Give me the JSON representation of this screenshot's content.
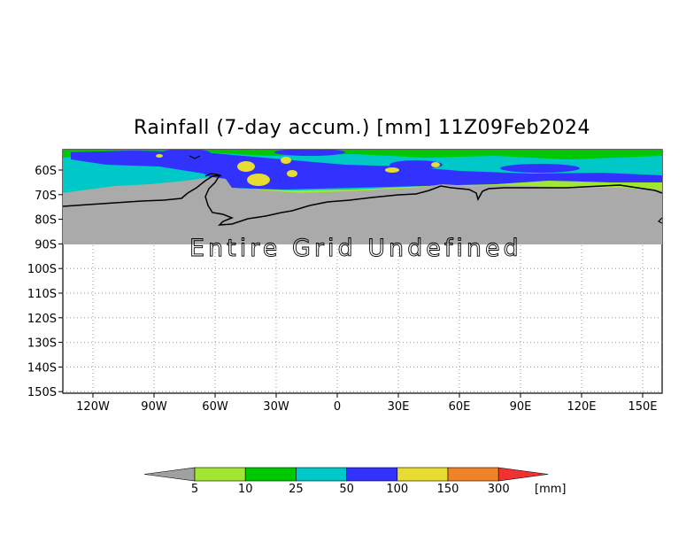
{
  "title": "Rainfall (7-day accum.) [mm] 11Z09Feb2024",
  "undefined_message": "Entire Grid Undefined",
  "map": {
    "projection": "latitude-longitude",
    "lon_range": [
      -138,
      157
    ],
    "lat_range": [
      -150,
      -50
    ],
    "y_ticks": [
      "60S",
      "70S",
      "80S",
      "90S",
      "100S",
      "110S",
      "120S",
      "130S",
      "140S",
      "150S"
    ],
    "x_ticks": [
      "120W",
      "90W",
      "60W",
      "30W",
      "0",
      "30E",
      "60E",
      "90E",
      "120E",
      "150E"
    ],
    "gridlines": true,
    "land_mask_color": "#aaaaaa"
  },
  "legend": {
    "unit": "[mm]",
    "thresholds": [
      "5",
      "10",
      "25",
      "50",
      "100",
      "150",
      "300"
    ],
    "colors": [
      "#a0a0a0",
      "#a0e632",
      "#00c800",
      "#00c8c8",
      "#3232ff",
      "#e6dc32",
      "#f08228",
      "#f03232"
    ]
  }
}
